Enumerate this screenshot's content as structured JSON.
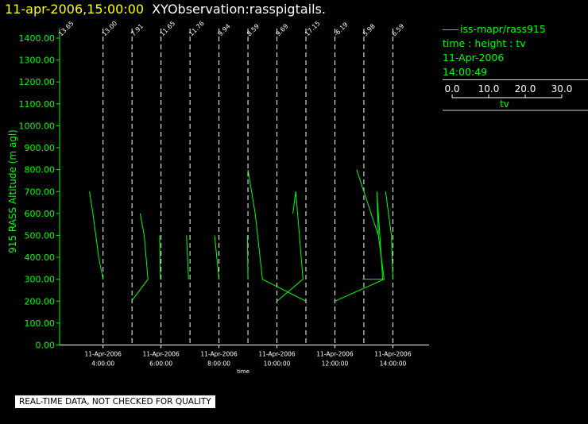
{
  "header": {
    "datetime": "11-apr-2006,15:00:00",
    "observation": "XYObservation:rasspigtails."
  },
  "legend": {
    "series_label": "iss-mapr/rass915",
    "description": "time : height : tv",
    "date": "11-Apr-2006",
    "time": "14:00:49",
    "scale_ticks": [
      "0.0",
      "10.0",
      "20.0",
      "30.0"
    ],
    "scale_label": "tv"
  },
  "notice": "REAL-TIME DATA, NOT CHECKED FOR QUALITY",
  "colors": {
    "trace": "#00ff00",
    "axis": "#ffffff",
    "title_date": "#ffff00",
    "background": "#000000"
  },
  "chart_data": {
    "type": "line",
    "ylabel": "915 RASS Altitude (m agl)",
    "xlabel": "time",
    "ylim": [
      0,
      1400
    ],
    "yticks": [
      "0.00",
      "100.00",
      "200.00",
      "300.00",
      "400.00",
      "500.00",
      "600.00",
      "700.00",
      "800.00",
      "900.00",
      "1000.00",
      "1100.00",
      "1200.00",
      "1300.00",
      "1400.00"
    ],
    "xlim": [
      2.5,
      15.25
    ],
    "x_ticks": [
      {
        "t": 4,
        "date": "11-Apr-2006",
        "time": "4:00:00"
      },
      {
        "t": 6,
        "date": "11-Apr-2006",
        "time": "6:00:00"
      },
      {
        "t": 8,
        "date": "11-Apr-2006",
        "time": "8:00:00"
      },
      {
        "t": 10,
        "date": "11-Apr-2006",
        "time": "10:00:00"
      },
      {
        "t": 12,
        "date": "11-Apr-2006",
        "time": "12:00:00"
      },
      {
        "t": 14,
        "date": "11-Apr-2006",
        "time": "14:00:00"
      }
    ],
    "scale_tv_per_hour": 30,
    "pigtails": [
      {
        "t": 2.5,
        "label": "13.65",
        "points": []
      },
      {
        "t": 4,
        "label": "13.00",
        "points": [
          [
            -0.47,
            700
          ],
          [
            -0.35,
            600
          ],
          [
            -0.15,
            400
          ],
          [
            0,
            300
          ]
        ]
      },
      {
        "t": 5,
        "label": "7.91",
        "points": [
          [
            -0.02,
            200
          ],
          [
            0.55,
            300
          ],
          [
            0.42,
            500
          ],
          [
            0.28,
            600
          ]
        ]
      },
      {
        "t": 6,
        "label": "11.65",
        "points": [
          [
            -0.02,
            300
          ],
          [
            -0.05,
            500
          ]
        ]
      },
      {
        "t": 7,
        "label": "11.76",
        "points": [
          [
            -0.05,
            300
          ],
          [
            -0.12,
            500
          ]
        ]
      },
      {
        "t": 8,
        "label": "9.94",
        "points": [
          [
            0,
            300
          ],
          [
            -0.15,
            500
          ]
        ]
      },
      {
        "t": 9,
        "label": "8.59",
        "points": [
          [
            0,
            300
          ],
          [
            -0.02,
            500
          ]
        ]
      },
      {
        "t": 10,
        "label": "9.69",
        "points": [
          [
            -1.0,
            800
          ],
          [
            -0.75,
            600
          ],
          [
            -0.5,
            300
          ],
          [
            1.0,
            200
          ]
        ]
      },
      {
        "t": 11,
        "label": "17.15",
        "points": [
          [
            -1.0,
            200
          ],
          [
            -0.1,
            300
          ],
          [
            -0.35,
            700
          ],
          [
            -0.45,
            600
          ]
        ]
      },
      {
        "t": 12,
        "label": "-6.19",
        "points": [
          [
            0,
            200
          ],
          [
            1.7,
            300
          ],
          [
            1.5,
            500
          ],
          [
            0.75,
            800
          ]
        ]
      },
      {
        "t": 13,
        "label": "5.98",
        "points": [
          [
            -0.05,
            300
          ],
          [
            0.65,
            300
          ],
          [
            0.45,
            700
          ],
          [
            0.5,
            500
          ]
        ]
      },
      {
        "t": 14,
        "label": "6.59",
        "points": [
          [
            -0.25,
            700
          ],
          [
            -0.05,
            500
          ],
          [
            0,
            300
          ]
        ]
      }
    ]
  }
}
